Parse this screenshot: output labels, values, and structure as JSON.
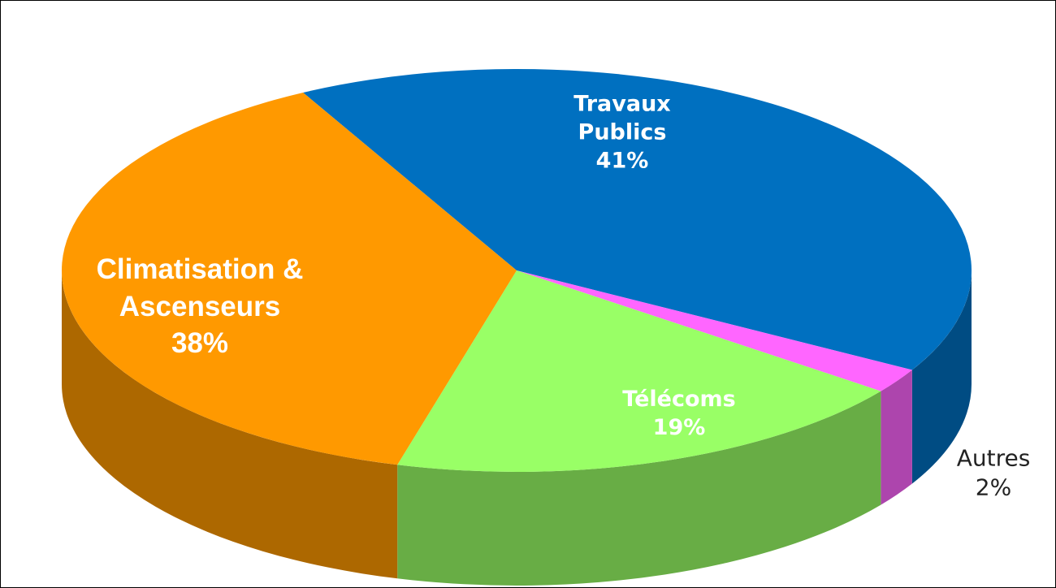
{
  "chart_data": {
    "type": "pie",
    "categories": [
      "Travaux Publics",
      "Autres",
      "Télécoms",
      "Climatisation & Ascenseurs"
    ],
    "values": [
      41,
      2,
      19,
      38
    ],
    "value_labels": [
      "41%",
      "2%",
      "19%",
      "38%"
    ],
    "colors": [
      "#0070c0",
      "#ff66ff",
      "#99ff66",
      "#ff9900"
    ]
  }
}
